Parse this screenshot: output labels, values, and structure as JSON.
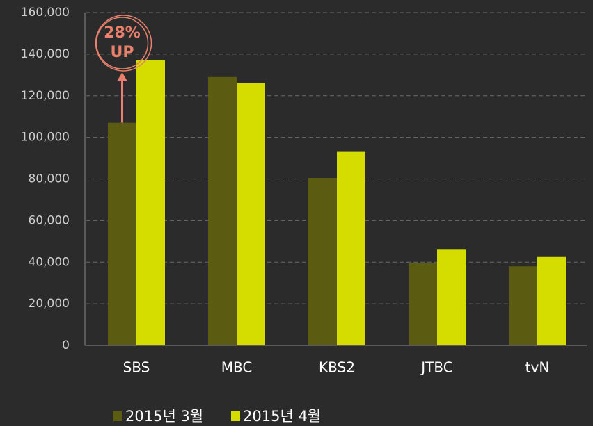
{
  "chart_data": {
    "type": "bar",
    "categories": [
      "SBS",
      "MBC",
      "KBS2",
      "JTBC",
      "tvN"
    ],
    "series": [
      {
        "name": "2015년 3월",
        "color": "#5b5c12",
        "values": [
          107000,
          129000,
          80500,
          39500,
          38000
        ]
      },
      {
        "name": "2015년 4월",
        "color": "#d4dc00",
        "values": [
          137000,
          126000,
          93000,
          46000,
          42500
        ]
      }
    ],
    "ylim": [
      0,
      160000
    ],
    "yticks": [
      0,
      {
        "value": 20000,
        "label": "20,000"
      },
      {
        "value": 40000,
        "label": "40,000"
      },
      {
        "value": 60000,
        "label": "60,000"
      },
      {
        "value": 80000,
        "label": "80,000"
      },
      {
        "value": 100000,
        "label": "100,000"
      },
      {
        "value": 120000,
        "label": "120,000"
      },
      {
        "value": 140000,
        "label": "140,000"
      },
      {
        "value": 160000,
        "label": "160,000"
      }
    ],
    "grid": true,
    "legend": "bottom",
    "annotation": [
      "28%",
      "UP"
    ]
  }
}
